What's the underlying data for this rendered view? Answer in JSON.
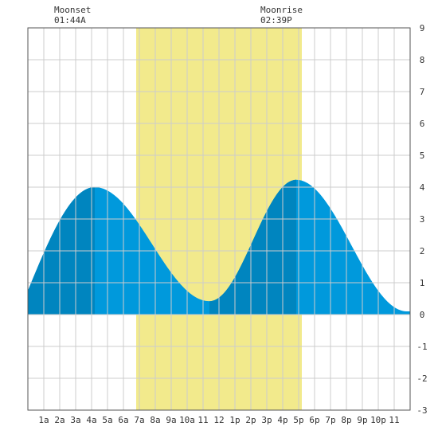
{
  "moon": {
    "moonset_label": "Moonset",
    "moonset_time": "01:44A",
    "moonrise_label": "Moonrise",
    "moonrise_time": "02:39P"
  },
  "chart_data": {
    "type": "area",
    "title": "",
    "xlabel": "",
    "ylabel": "",
    "xlim": [
      0,
      24
    ],
    "ylim": [
      -3,
      9
    ],
    "grid": true,
    "x_ticks": [
      {
        "x": 1,
        "label": "1a"
      },
      {
        "x": 2,
        "label": "2a"
      },
      {
        "x": 3,
        "label": "3a"
      },
      {
        "x": 4,
        "label": "4a"
      },
      {
        "x": 5,
        "label": "5a"
      },
      {
        "x": 6,
        "label": "6a"
      },
      {
        "x": 7,
        "label": "7a"
      },
      {
        "x": 8,
        "label": "8a"
      },
      {
        "x": 9,
        "label": "9a"
      },
      {
        "x": 10,
        "label": "10a"
      },
      {
        "x": 11,
        "label": "11"
      },
      {
        "x": 12,
        "label": "12"
      },
      {
        "x": 13,
        "label": "1p"
      },
      {
        "x": 14,
        "label": "2p"
      },
      {
        "x": 15,
        "label": "3p"
      },
      {
        "x": 16,
        "label": "4p"
      },
      {
        "x": 17,
        "label": "5p"
      },
      {
        "x": 18,
        "label": "6p"
      },
      {
        "x": 19,
        "label": "7p"
      },
      {
        "x": 20,
        "label": "8p"
      },
      {
        "x": 21,
        "label": "9p"
      },
      {
        "x": 22,
        "label": "10p"
      },
      {
        "x": 23,
        "label": "11"
      }
    ],
    "y_ticks": [
      -3,
      -2,
      -1,
      0,
      1,
      2,
      3,
      4,
      5,
      6,
      7,
      8,
      9
    ],
    "daylight": {
      "start": 6.8,
      "end": 17.2
    },
    "tide_extremes": [
      {
        "t": 4.2,
        "h": 4.0,
        "kind": "high"
      },
      {
        "t": 11.4,
        "h": 0.42,
        "kind": "low"
      },
      {
        "t": 16.85,
        "h": 4.23,
        "kind": "high"
      },
      {
        "t": 23.8,
        "h": 0.1,
        "kind": "low"
      }
    ],
    "boundary_heights": {
      "start": 0.75,
      "end": 0.1
    },
    "rising_bands": [
      [
        0,
        4.2
      ],
      [
        11.4,
        16.85
      ]
    ],
    "colors": {
      "daylight": "#f2ea8c",
      "water": "#0099dc",
      "water_rising": "#0085bf",
      "grid": "#cccccc",
      "axis": "#555555"
    }
  }
}
